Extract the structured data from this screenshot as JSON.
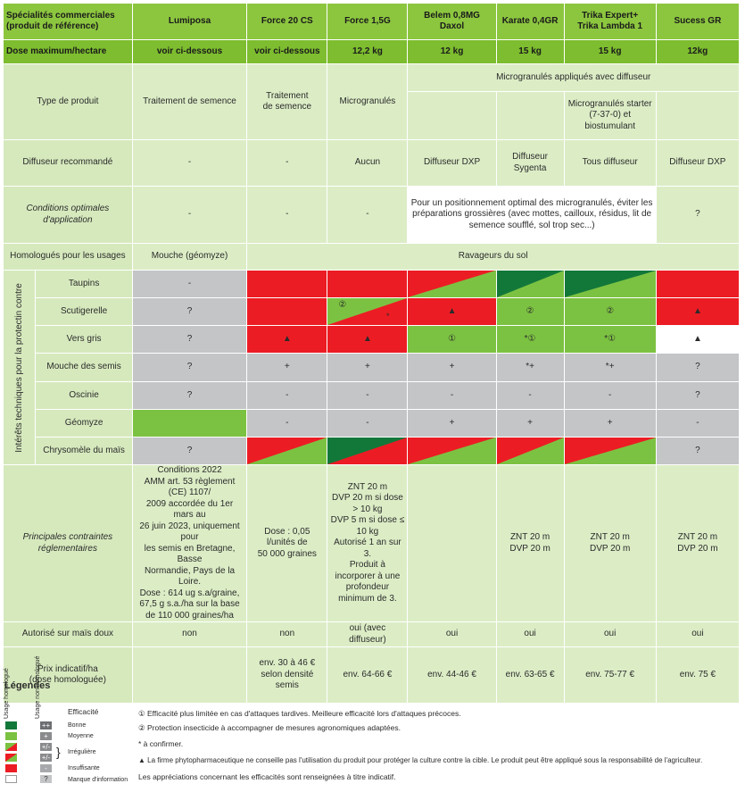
{
  "header": {
    "spec_line1": "Spécialités commerciales",
    "spec_line2": "(produit de référence)",
    "products": [
      "Lumiposa",
      "Force 20 CS",
      "Force 1,5G",
      "Belem 0,8MG\nDaxol",
      "Karate 0,4GR",
      "Trika Expert+\nTrika Lambda 1",
      "Sucess GR"
    ]
  },
  "dose": {
    "label": "Dose maximum/hectare",
    "values": [
      "voir ci-dessous",
      "voir ci-dessous",
      "12,2 kg",
      "12 kg",
      "15 kg",
      "15 kg",
      "12kg"
    ]
  },
  "type_produit": {
    "label": "Type de produit",
    "lumiposa": "Traitement de semence",
    "force20": "Traitement\nde semence",
    "force15": "Microgranulés",
    "group": "Microgranulés appliqués avec diffuseur",
    "trika": "Microgranulés starter\n(7-37-0) et biostumulant"
  },
  "diffuseur": {
    "label": "Diffuseur recommandé",
    "values": [
      "-",
      "-",
      "Aucun",
      "Diffuseur DXP",
      "Diffuseur\nSygenta",
      "Tous diffuseur",
      "Diffuseur DXP"
    ]
  },
  "conditions": {
    "label": "Conditions optimales\nd'application",
    "values": [
      "-",
      "-",
      "-"
    ],
    "merged": "Pour un positionnement optimal des microgranulés, éviter les\npréparations grossières (avec mottes, cailloux, résidus, lit de\nsemence soufflé, sol trop sec...)",
    "sucess": "?"
  },
  "homologues": {
    "label": "Homologués pour les usages",
    "lumiposa": "Mouche (géomyze)",
    "others": "Ravageurs du sol"
  },
  "efficacy": {
    "vertical_label": "Intérêts techniques pour la protectin contre",
    "rows": [
      {
        "label": "Taupins",
        "cells": [
          {
            "c": "gr",
            "t": "-"
          },
          {
            "c": "red",
            "t": ""
          },
          {
            "c": "red",
            "t": ""
          },
          {
            "c": "tri-red-grn",
            "t": ""
          },
          {
            "c": "tri-dgrn-grn",
            "t": ""
          },
          {
            "c": "tri-dgrn-grn",
            "t": ""
          },
          {
            "c": "red",
            "t": ""
          }
        ]
      },
      {
        "label": "Scutigerelle",
        "cells": [
          {
            "c": "gr",
            "t": "?"
          },
          {
            "c": "red",
            "t": ""
          },
          {
            "c": "tri-grn-red",
            "t": "②",
            "t2": "*"
          },
          {
            "c": "red",
            "t": "▲"
          },
          {
            "c": "grn",
            "t": "②"
          },
          {
            "c": "grn",
            "t": "②"
          },
          {
            "c": "red",
            "t": "▲"
          }
        ]
      },
      {
        "label": "Vers gris",
        "cells": [
          {
            "c": "gr",
            "t": "?"
          },
          {
            "c": "red",
            "t": "▲"
          },
          {
            "c": "red",
            "t": "▲"
          },
          {
            "c": "grn",
            "t": "①"
          },
          {
            "c": "grn",
            "t": "*①"
          },
          {
            "c": "grn",
            "t": "*①"
          },
          {
            "c": "wh",
            "t": "▲"
          }
        ]
      },
      {
        "label": "Mouche des semis",
        "cells": [
          {
            "c": "gr",
            "t": "?"
          },
          {
            "c": "gr",
            "t": "+"
          },
          {
            "c": "gr",
            "t": "+"
          },
          {
            "c": "gr",
            "t": "+"
          },
          {
            "c": "gr",
            "t": "*+"
          },
          {
            "c": "gr",
            "t": "*+"
          },
          {
            "c": "gr",
            "t": "?"
          }
        ]
      },
      {
        "label": "Oscinie",
        "cells": [
          {
            "c": "gr",
            "t": "?"
          },
          {
            "c": "gr",
            "t": "-"
          },
          {
            "c": "gr",
            "t": "-"
          },
          {
            "c": "gr",
            "t": "-"
          },
          {
            "c": "gr",
            "t": "-"
          },
          {
            "c": "gr",
            "t": "-"
          },
          {
            "c": "gr",
            "t": "?"
          }
        ]
      },
      {
        "label": "Géomyze",
        "cells": [
          {
            "c": "grn",
            "t": ""
          },
          {
            "c": "gr",
            "t": "-"
          },
          {
            "c": "gr",
            "t": "-"
          },
          {
            "c": "gr",
            "t": "+"
          },
          {
            "c": "gr",
            "t": "+"
          },
          {
            "c": "gr",
            "t": "+"
          },
          {
            "c": "gr",
            "t": "-"
          }
        ]
      },
      {
        "label": "Chrysomèle du maïs",
        "cells": [
          {
            "c": "gr",
            "t": "?"
          },
          {
            "c": "tri-red-grn",
            "t": ""
          },
          {
            "c": "tri-dgrn-red",
            "t": ""
          },
          {
            "c": "tri-red-grn",
            "t": ""
          },
          {
            "c": "tri-red-grn",
            "t": ""
          },
          {
            "c": "tri-red-grn",
            "t": ""
          },
          {
            "c": "gr",
            "t": "?"
          }
        ]
      }
    ]
  },
  "contraintes": {
    "label": "Principales contraintes\nréglementaires",
    "lumiposa": "Conditions 2022\nAMM art. 53 règlement (CE) 1107/\n2009 accordée du 1er mars au\n26 juin 2023, uniquement pour\nles semis en Bretagne, Basse\nNormandie, Pays de la Loire.\nDose : 614 ug s.a/graine,\n67,5 g s.a./ha sur la base\nde 110 000 graines/ha",
    "force20": "Dose : 0,05 l/unités de\n50 000 graines",
    "force15": "ZNT 20 m\nDVP 20 m si dose > 10 kg\nDVP 5 m si dose ≤ 10 kg\nAutorisé 1 an sur 3.\nProduit à incorporer à une\nprofondeur minimum de 3.",
    "belem": "",
    "karate": "ZNT 20 m\nDVP 20 m",
    "trika": "ZNT 20 m\nDVP 20 m",
    "sucess": "ZNT 20 m\nDVP 20 m"
  },
  "autorise": {
    "label": "Autorisé sur maïs doux",
    "values": [
      "non",
      "non",
      "oui (avec diffuseur)",
      "oui",
      "oui",
      "oui",
      "oui"
    ]
  },
  "prix": {
    "label": "Prix indicatif/ha\n(dose homologuée)",
    "values": [
      "",
      "env. 30 à 46 €\nselon densité\nsemis",
      "env. 64-66 €",
      "env. 44-46 €",
      "env. 63-65 €",
      "env. 75-77 €",
      "env. 75 €"
    ]
  },
  "legend": {
    "title": "Légendes",
    "col1": "Usage homologué",
    "col2": "Usage non homologué",
    "efficacite": "Efficacité",
    "levels": [
      "Bonne",
      "Moyenne",
      "Irrégulière",
      "Insuffisante",
      "Manque d'information"
    ],
    "codes": [
      "++",
      "+",
      "+/-",
      "+/-",
      "-",
      "?"
    ],
    "notes": [
      "① Efficacité plus limitée en cas d'attaques tardives. Meilleure efficacité lors d'attaques précoces.",
      "② Protection insecticide à accompagner de mesures agronomiques adaptées.",
      "* à confirmer.",
      "▲ La firme phytopharmaceutique ne conseille pas l'utilisation du produit pour protéger la culture contre la cible. Le produit peut être appliqué sous la responsabilité de l'agriculteur.",
      "Les appréciations concernant les efficacités sont renseignées à titre indicatif."
    ]
  },
  "colors": {
    "header_green": "#8cc63f",
    "light_green": "#d6e9bd",
    "red": "#ec1c24",
    "green": "#7cc242",
    "dark_green": "#12783a",
    "grey": "#c3c5c7"
  }
}
